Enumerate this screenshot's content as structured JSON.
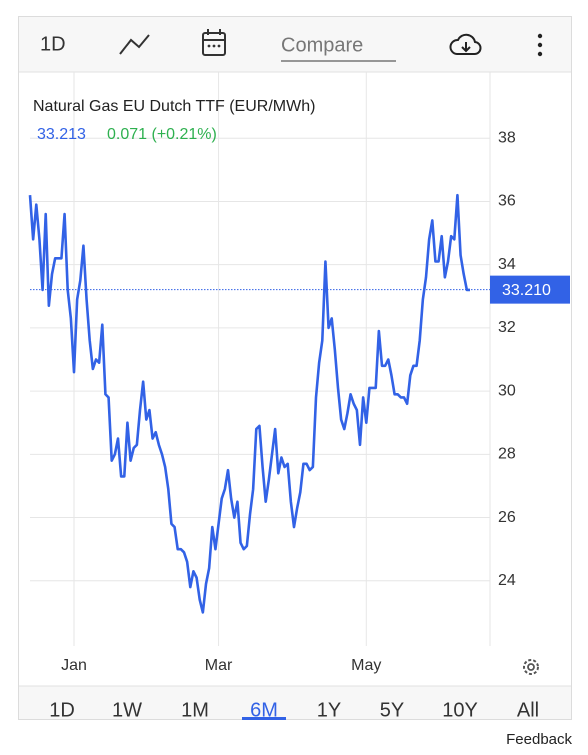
{
  "toolbar": {
    "interval": "1D",
    "compare": "Compare"
  },
  "ranges": [
    "1D",
    "1W",
    "1M",
    "6M",
    "1Y",
    "5Y",
    "10Y",
    "All"
  ],
  "active_range": "6M",
  "feedback": "Feedback",
  "chart_data": {
    "type": "line",
    "title": "Natural Gas EU Dutch TTF (EUR/MWh)",
    "price": 33.213,
    "change": "0.071 (+0.21%)",
    "price_color": "#3262e6",
    "change_color": "#2eb04f",
    "color": "#3262e6",
    "categories": [
      null,
      null,
      null,
      null,
      null,
      null,
      null,
      null,
      null,
      null,
      null,
      null,
      null,
      null,
      "Jan",
      null,
      null,
      null,
      null,
      null,
      null,
      null,
      null,
      null,
      null,
      null,
      null,
      null,
      null,
      null,
      null,
      null,
      null,
      null,
      null,
      null,
      null,
      null,
      null,
      null,
      null,
      null,
      null,
      null,
      null,
      null,
      null,
      null,
      null,
      null,
      null,
      null,
      null,
      null,
      null,
      null,
      null,
      null,
      null,
      null,
      "Mar",
      null,
      null,
      null,
      null,
      null,
      null,
      null,
      null,
      null,
      null,
      null,
      null,
      null,
      null,
      null,
      null,
      null,
      null,
      null,
      null,
      null,
      null,
      null,
      null,
      null,
      null,
      null,
      null,
      null,
      null,
      null,
      null,
      null,
      null,
      null,
      null,
      null,
      null,
      null,
      null,
      null,
      null,
      null,
      null,
      null,
      null,
      "May",
      null,
      null,
      null,
      null,
      null,
      null,
      null,
      null,
      null,
      null,
      null,
      null,
      null,
      null,
      null,
      null,
      null,
      null,
      null,
      null,
      null,
      null,
      null,
      null,
      null,
      null,
      null,
      null,
      null,
      null,
      null,
      null,
      null
    ],
    "values": [
      36.2,
      34.8,
      35.9,
      34.8,
      33.2,
      35.6,
      32.7,
      33.7,
      34.2,
      34.2,
      34.2,
      35.6,
      33.2,
      32.3,
      30.6,
      32.9,
      33.5,
      34.6,
      32.9,
      31.6,
      30.7,
      31.0,
      30.9,
      32.1,
      29.9,
      29.8,
      27.8,
      28.0,
      28.5,
      27.3,
      27.3,
      29.0,
      27.8,
      28.2,
      28.3,
      29.4,
      30.3,
      29.1,
      29.4,
      28.5,
      28.7,
      28.3,
      28.0,
      27.6,
      26.9,
      25.8,
      25.7,
      25.0,
      25.0,
      24.9,
      24.6,
      23.8,
      24.3,
      24.1,
      23.4,
      23.0,
      23.9,
      24.4,
      25.7,
      25.0,
      25.8,
      26.6,
      26.9,
      27.5,
      26.6,
      26.0,
      26.5,
      25.2,
      25.0,
      25.1,
      26.1,
      26.9,
      28.8,
      28.9,
      27.6,
      26.5,
      27.2,
      28.0,
      28.8,
      27.4,
      27.9,
      27.6,
      27.7,
      26.5,
      25.7,
      26.3,
      26.8,
      27.7,
      27.7,
      27.5,
      27.6,
      29.8,
      30.9,
      31.6,
      34.1,
      32.0,
      32.3,
      31.3,
      30.1,
      29.1,
      28.8,
      29.3,
      29.9,
      29.6,
      29.4,
      28.3,
      29.8,
      29.0,
      30.1,
      30.1,
      30.1,
      31.9,
      30.8,
      30.8,
      31.0,
      30.5,
      29.9,
      29.9,
      29.8,
      29.8,
      29.6,
      30.5,
      30.8,
      30.8,
      31.6,
      32.9,
      33.6,
      34.8,
      35.4,
      34.1,
      34.1,
      34.9,
      33.6,
      34.1,
      34.9,
      34.8,
      36.2,
      34.3,
      33.7,
      33.2,
      33.2
    ],
    "ylim": [
      22,
      40
    ],
    "yticks": [
      24,
      26,
      28,
      30,
      32,
      34,
      36,
      38
    ],
    "grid": true,
    "price_line": {
      "value": 33.21,
      "label": "33.210"
    }
  }
}
